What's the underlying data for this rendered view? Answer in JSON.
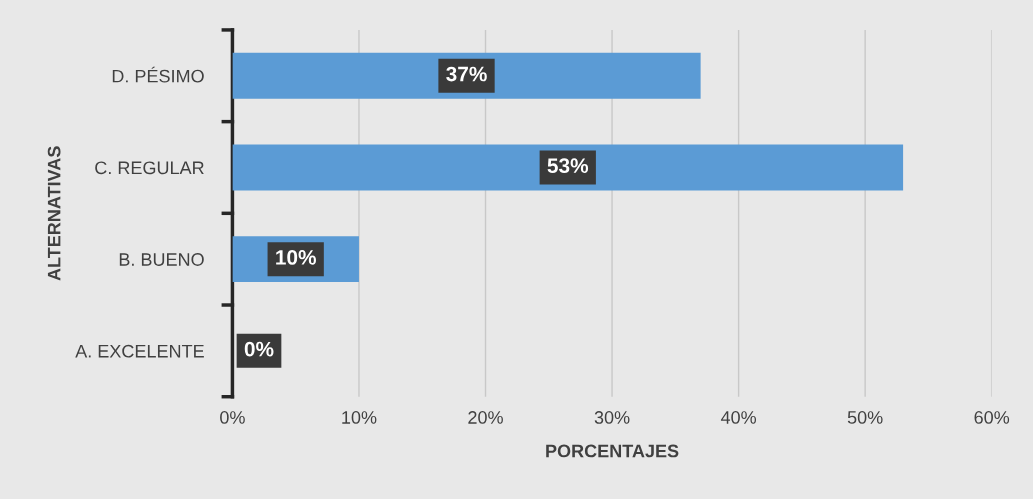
{
  "chart_data": {
    "type": "bar",
    "orientation": "horizontal",
    "xlabel": "PORCENTAJES",
    "ylabel": "ALTERNATIVAS",
    "categories": [
      "D. PÉSIMO",
      "C. REGULAR",
      "B. BUENO",
      "A. EXCELENTE"
    ],
    "values": [
      37,
      53,
      10,
      0
    ],
    "value_labels": [
      "37%",
      "53%",
      "10%",
      "0%"
    ],
    "color": "#5b9bd5",
    "xlim": [
      0,
      60
    ],
    "xticks": [
      {
        "value": 0,
        "label": "0%"
      },
      {
        "value": 10,
        "label": "10%"
      },
      {
        "value": 20,
        "label": "20%"
      },
      {
        "value": 30,
        "label": "30%"
      },
      {
        "value": 40,
        "label": "40%"
      },
      {
        "value": 50,
        "label": "50%"
      },
      {
        "value": 60,
        "label": "60%"
      }
    ],
    "grid": "x",
    "legend": false
  }
}
